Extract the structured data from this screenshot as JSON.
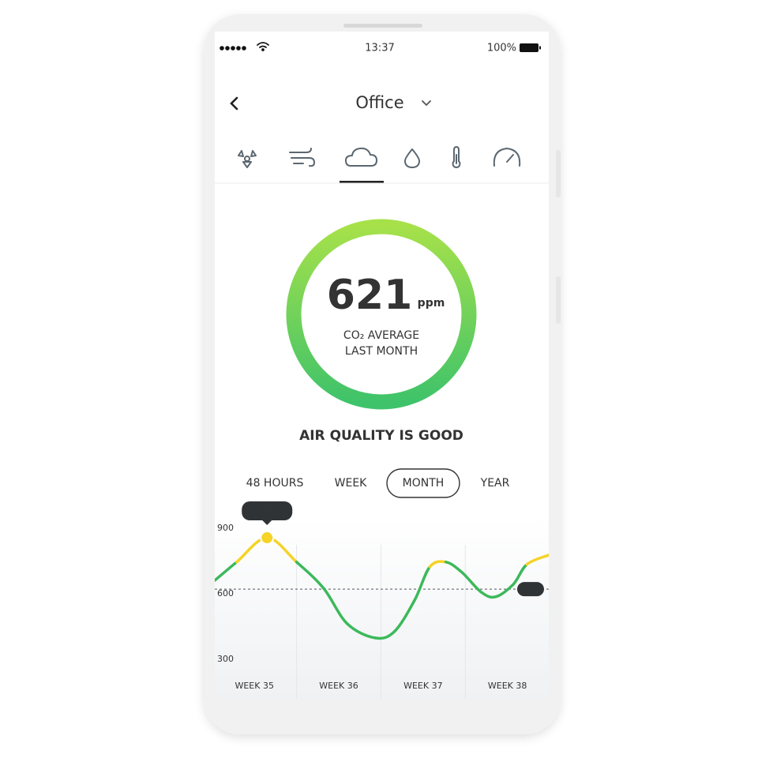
{
  "status_bar": {
    "time": "13:37",
    "battery": "100%"
  },
  "header": {
    "title": "Office"
  },
  "gauge": {
    "value": 621,
    "unit": "ppm",
    "caption_lines": [
      "CO₂ AVERAGE",
      "LAST MONTH"
    ],
    "status": "AIR QUALITY IS GOOD"
  },
  "period_tabs": {
    "options": [
      "48 HOURS",
      "WEEK",
      "MONTH",
      "YEAR"
    ],
    "selected": "MONTH"
  },
  "chart_data": {
    "type": "line",
    "x": [
      34.53,
      34.79,
      35.15,
      35.5,
      35.82,
      36.1,
      36.43,
      36.66,
      36.9,
      37.08,
      37.27,
      37.46,
      37.69,
      37.86,
      38.07,
      38.23,
      38.49
    ],
    "series": [
      {
        "color": "#3cb95b",
        "values": [
          661,
          745,
          856,
          745,
          625,
          463,
          398,
          427,
          571,
          723,
          745,
          698,
          607,
          586,
          643,
          734,
          777
        ],
        "point_colors": [
          "#3cb95b",
          "#f5d327",
          "#f5d327",
          "#f5d327",
          "#3cb95b",
          "#3cb95b",
          "#3cb95b",
          "#3cb95b",
          "#3cb95b",
          "#f5d327",
          "#f5d327",
          "#3cb95b",
          "#3cb95b",
          "#3cb95b",
          "#3cb95b",
          "#f5d327",
          "#f5d327"
        ]
      }
    ],
    "xlim": [
      34.53,
      38.49
    ],
    "xticks": [
      {
        "value": 35,
        "label": "WEEK 35"
      },
      {
        "value": 36,
        "label": "WEEK 36"
      },
      {
        "value": 37,
        "label": "WEEK 37"
      },
      {
        "value": 38,
        "label": "WEEK 38"
      }
    ],
    "ylim": [
      228,
      932
    ],
    "yticks": [
      300,
      600,
      900
    ],
    "marker": {
      "x": 35.15,
      "value": 856,
      "color": "#f5d327"
    },
    "average": {
      "value": 621
    }
  }
}
